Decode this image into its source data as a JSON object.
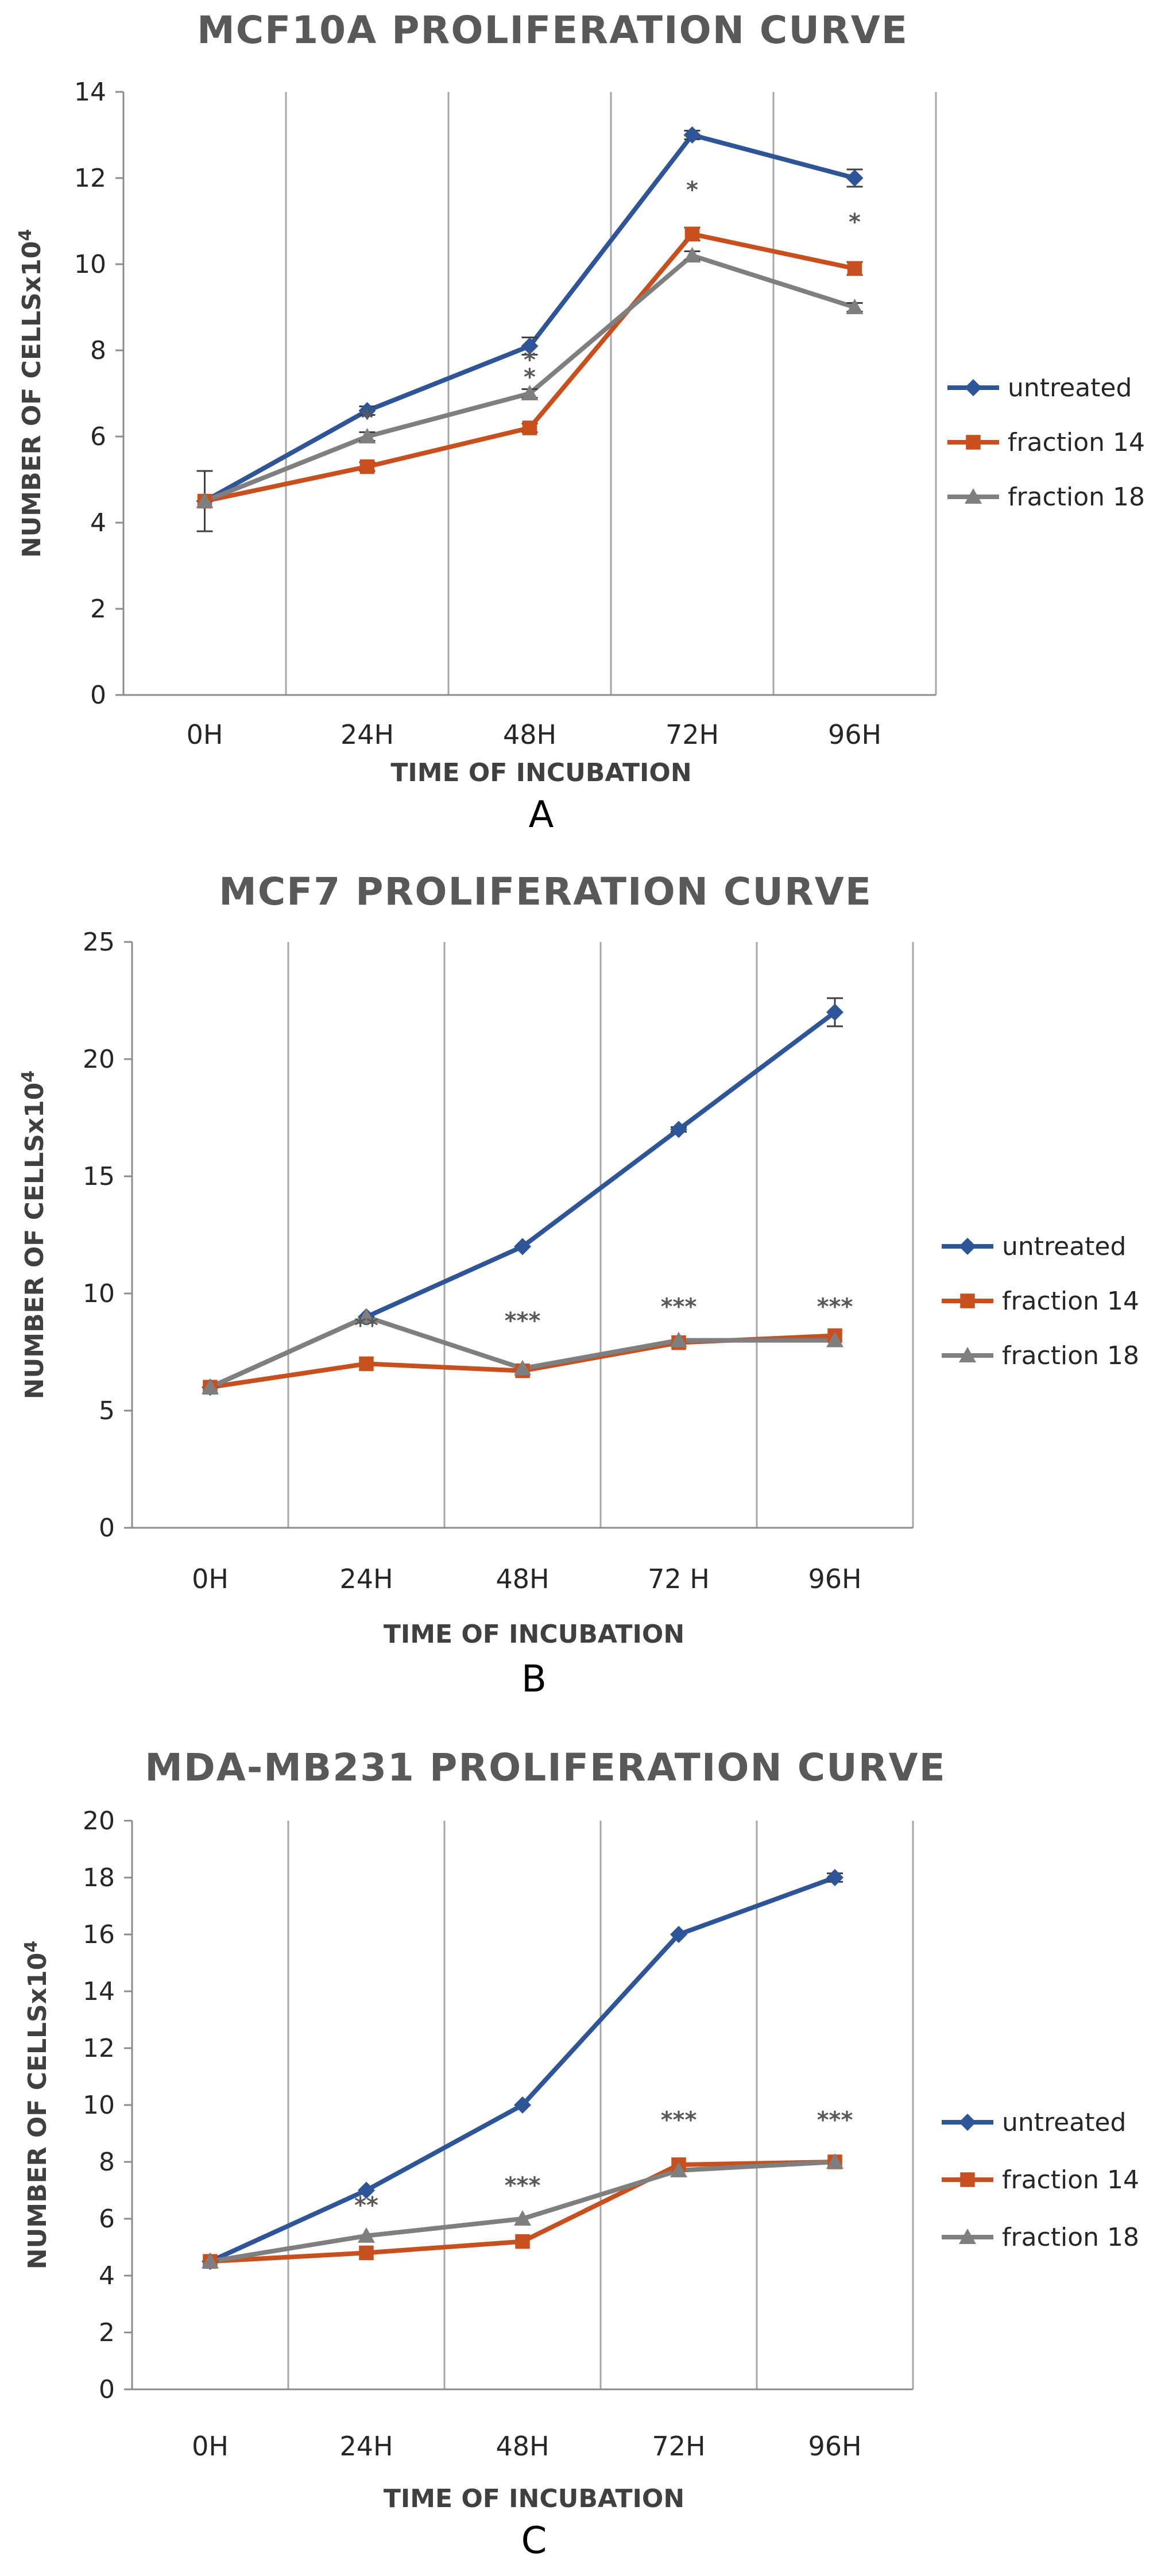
{
  "chart_data": [
    {
      "type": "line",
      "panel_label": "A",
      "title": "MCF10A PROLIFERATION CURVE",
      "xlabel": "TIME OF INCUBATION",
      "ylabel": "NUMBER OF CELLSx10",
      "ylabel_sup": "4",
      "categories": [
        "0H",
        "24H",
        "48H",
        "72H",
        "96H"
      ],
      "ylim": [
        0,
        14
      ],
      "yticks": [
        0,
        2,
        4,
        6,
        8,
        10,
        12,
        14
      ],
      "vertical_gridlines": true,
      "legend_position": "right",
      "series": [
        {
          "name": "untreated",
          "color": "#2E5597",
          "marker": "diamond",
          "values": [
            4.5,
            6.6,
            8.1,
            13.0,
            12.0
          ],
          "errors": [
            0.7,
            0.1,
            0.2,
            0.1,
            0.2
          ]
        },
        {
          "name": "fraction 14",
          "color": "#C8501E",
          "marker": "square",
          "values": [
            4.5,
            5.3,
            6.2,
            10.7,
            9.9
          ],
          "errors": [
            0,
            0.1,
            0.1,
            0.15,
            0.15
          ]
        },
        {
          "name": "fraction 18",
          "color": "#7F7F7F",
          "marker": "triangle",
          "values": [
            4.5,
            6.0,
            7.0,
            10.2,
            9.0
          ],
          "errors": [
            0,
            0.1,
            0.1,
            0.1,
            0.1
          ]
        }
      ],
      "annotations": [
        {
          "category": "24H",
          "y": 6.25,
          "text": "*"
        },
        {
          "category": "48H",
          "y": 7.6,
          "text": "*"
        },
        {
          "category": "48H",
          "y": 7.2,
          "text": "*"
        },
        {
          "category": "72H",
          "y": 11.55,
          "text": "*"
        },
        {
          "category": "96H",
          "y": 10.8,
          "text": "*"
        }
      ]
    },
    {
      "type": "line",
      "panel_label": "B",
      "title": "MCF7 PROLIFERATION CURVE",
      "xlabel": "TIME OF INCUBATION",
      "ylabel": "NUMBER OF CELLSx10",
      "ylabel_sup": "4",
      "categories": [
        "0H",
        "24H",
        "48H",
        "72 H",
        "96H"
      ],
      "ylim": [
        0,
        25
      ],
      "yticks": [
        0,
        5,
        10,
        15,
        20,
        25
      ],
      "vertical_gridlines": true,
      "legend_position": "right",
      "series": [
        {
          "name": "untreated",
          "color": "#2E5597",
          "marker": "diamond",
          "values": [
            6,
            9,
            12,
            17,
            22
          ],
          "errors": [
            0,
            0,
            0,
            0.1,
            0.6
          ]
        },
        {
          "name": "fraction 14",
          "color": "#C8501E",
          "marker": "square",
          "values": [
            6,
            7,
            6.7,
            7.9,
            8.2
          ],
          "errors": [
            0,
            0,
            0,
            0,
            0
          ]
        },
        {
          "name": "fraction 18",
          "color": "#7F7F7F",
          "marker": "triangle",
          "values": [
            6,
            9,
            6.8,
            8.0,
            8.0
          ],
          "errors": [
            0,
            0,
            0,
            0,
            0
          ]
        }
      ],
      "annotations": [
        {
          "category": "24H",
          "y": 8.3,
          "text": "**"
        },
        {
          "category": "48H",
          "y": 8.5,
          "text": "***"
        },
        {
          "category": "72 H",
          "y": 9.1,
          "text": "***"
        },
        {
          "category": "96H",
          "y": 9.1,
          "text": "***"
        }
      ]
    },
    {
      "type": "line",
      "panel_label": "C",
      "title": "MDA-MB231 PROLIFERATION CURVE",
      "xlabel": "TIME OF INCUBATION",
      "ylabel": "NUMBER OF CELLSx10",
      "ylabel_sup": "4",
      "categories": [
        "0H",
        "24H",
        "48H",
        "72H",
        "96H"
      ],
      "ylim": [
        0,
        20
      ],
      "yticks": [
        0,
        2,
        4,
        6,
        8,
        10,
        12,
        14,
        16,
        18,
        20
      ],
      "vertical_gridlines": true,
      "legend_position": "right",
      "series": [
        {
          "name": "untreated",
          "color": "#2E5597",
          "marker": "diamond",
          "values": [
            4.5,
            7,
            10,
            16,
            18
          ],
          "errors": [
            0,
            0,
            0,
            0,
            0.15
          ]
        },
        {
          "name": "fraction 14",
          "color": "#C8501E",
          "marker": "square",
          "values": [
            4.5,
            4.8,
            5.2,
            7.9,
            8.0
          ],
          "errors": [
            0,
            0,
            0,
            0,
            0
          ]
        },
        {
          "name": "fraction 18",
          "color": "#7F7F7F",
          "marker": "triangle",
          "values": [
            4.5,
            5.4,
            6.0,
            7.7,
            8.0
          ],
          "errors": [
            0,
            0,
            0,
            0,
            0
          ]
        }
      ],
      "annotations": [
        {
          "category": "24H",
          "y": 6.2,
          "text": "**"
        },
        {
          "category": "48H",
          "y": 6.9,
          "text": "***"
        },
        {
          "category": "72H",
          "y": 9.2,
          "text": "***"
        },
        {
          "category": "96H",
          "y": 9.2,
          "text": "***"
        }
      ]
    }
  ]
}
